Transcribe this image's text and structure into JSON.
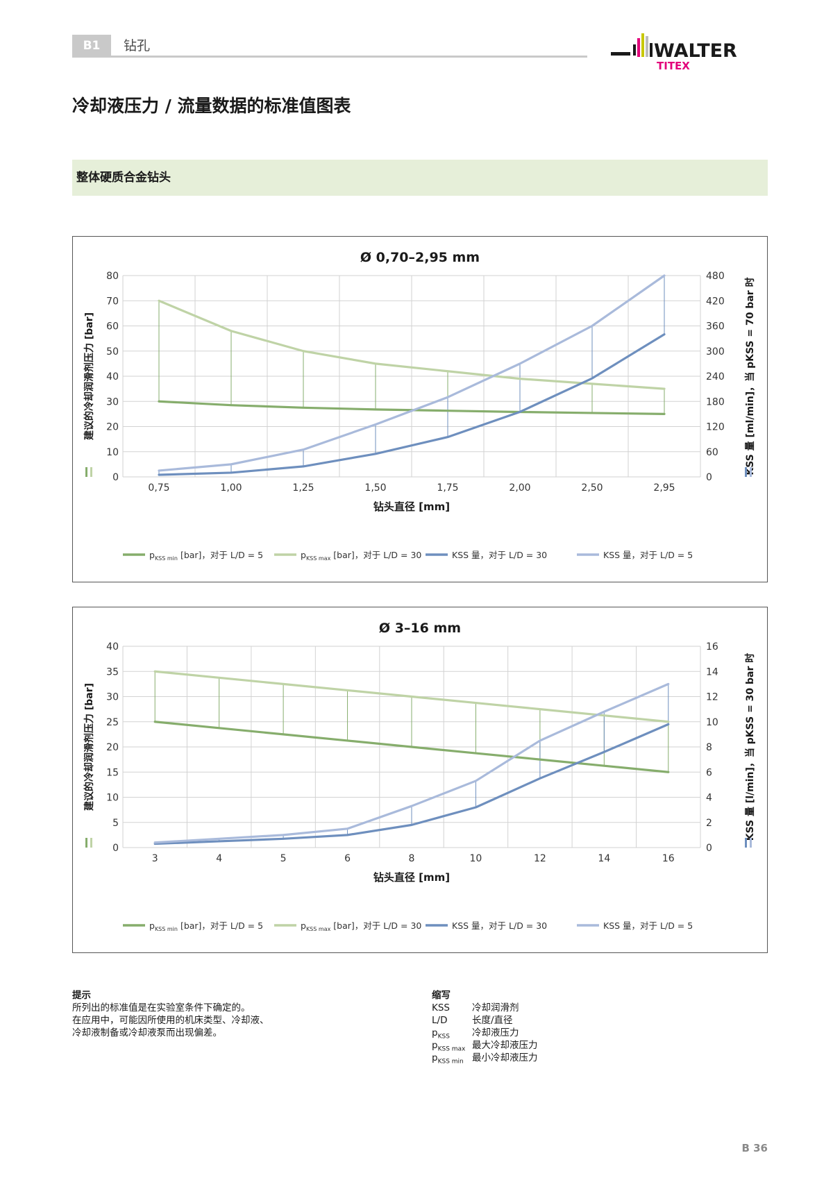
{
  "header": {
    "section_code": "B1",
    "section_title": "钻孔",
    "logo_main": "WALTER",
    "logo_sub": "TITEX"
  },
  "page_title": "冷却液压力 / 流量数据的标准值图表",
  "band_title": "整体硬质合金钻头",
  "colors": {
    "pmin": "#86ad6c",
    "pmax": "#bfd3a6",
    "kss30": "#6e8fbe",
    "kss5": "#a9badb",
    "band": "#e6efd9",
    "badge": "#c9c9c9"
  },
  "chart_data": [
    {
      "type": "line",
      "title": "Ø 0,70–2,95 mm",
      "xlabel": "钻头直径 [mm]",
      "ylabel": "建议的冷却润滑剂压力 [bar]",
      "ylabel_right": "KSS 量 [ml/min]，当 pKSS = 70 bar 时",
      "categories": [
        "0,75",
        "1,00",
        "1,25",
        "1,50",
        "1,75",
        "2,00",
        "2,50",
        "2,95"
      ],
      "ylim": [
        0,
        80
      ],
      "yticks": [
        0,
        10,
        20,
        30,
        40,
        50,
        60,
        70,
        80
      ],
      "y2lim": [
        0,
        480
      ],
      "y2ticks": [
        0,
        60,
        120,
        180,
        240,
        300,
        360,
        420,
        480
      ],
      "grid": true,
      "legend_position": "bottom",
      "series": [
        {
          "name": "pKSSmin [bar]，对于 L/D = 5",
          "axis": "left",
          "values": [
            30,
            28.5,
            27.5,
            26.8,
            26.3,
            25.8,
            25.4,
            25
          ]
        },
        {
          "name": "pKSSmax [bar]，对于 L/D = 30",
          "axis": "left",
          "values": [
            70,
            58,
            50,
            45,
            42,
            39,
            37,
            35
          ]
        },
        {
          "name": "KSS 量，对于 L/D = 30",
          "axis": "right",
          "values": [
            5,
            10,
            25,
            55,
            95,
            155,
            235,
            340
          ]
        },
        {
          "name": "KSS 量，对于 L/D = 5",
          "axis": "right",
          "values": [
            15,
            30,
            65,
            125,
            190,
            270,
            360,
            480
          ]
        }
      ],
      "legend_labels": [
        {
          "p": "p",
          "sub": "KSS min",
          "rest": " [bar]，对于 L/D = 5"
        },
        {
          "p": "p",
          "sub": "KSS max",
          "rest": " [bar]，对于 L/D = 30"
        },
        {
          "p": "",
          "sub": "",
          "rest": "KSS 量，对于 L/D = 30"
        },
        {
          "p": "",
          "sub": "",
          "rest": "KSS 量，对于 L/D = 5"
        }
      ]
    },
    {
      "type": "line",
      "title": "Ø 3–16 mm",
      "xlabel": "钻头直径 [mm]",
      "ylabel": "建议的冷却润滑剂压力 [bar]",
      "ylabel_right": "KSS 量 [l/min]，当 pKSS = 30 bar 时",
      "categories": [
        "3",
        "4",
        "5",
        "6",
        "8",
        "10",
        "12",
        "14",
        "16"
      ],
      "ylim": [
        0,
        40
      ],
      "yticks": [
        0,
        5,
        10,
        15,
        20,
        25,
        30,
        35,
        40
      ],
      "y2lim": [
        0,
        16
      ],
      "y2ticks": [
        0,
        2,
        4,
        6,
        8,
        10,
        12,
        14,
        16
      ],
      "grid": true,
      "legend_position": "bottom",
      "series": [
        {
          "name": "pKSSmin [bar]，对于 L/D = 5",
          "axis": "left",
          "values": [
            25,
            23.75,
            22.5,
            21.25,
            20,
            18.75,
            17.5,
            16.25,
            15
          ]
        },
        {
          "name": "pKSSmax [bar]，对于 L/D = 30",
          "axis": "left",
          "values": [
            35,
            33.75,
            32.5,
            31.25,
            30,
            28.75,
            27.5,
            26.25,
            25
          ]
        },
        {
          "name": "KSS 量，对于 L/D = 30",
          "axis": "right",
          "values": [
            0.3,
            0.5,
            0.7,
            1.0,
            1.8,
            3.2,
            5.5,
            7.6,
            9.8
          ]
        },
        {
          "name": "KSS 量，对于 L/D = 5",
          "axis": "right",
          "values": [
            0.4,
            0.7,
            1.0,
            1.5,
            3.3,
            5.3,
            8.5,
            10.8,
            13
          ]
        }
      ],
      "legend_labels": [
        {
          "p": "p",
          "sub": "KSS min",
          "rest": " [bar]，对于 L/D = 5"
        },
        {
          "p": "p",
          "sub": "KSS max",
          "rest": " [bar]，对于 L/D = 30"
        },
        {
          "p": "",
          "sub": "",
          "rest": "KSS 量，对于 L/D = 30"
        },
        {
          "p": "",
          "sub": "",
          "rest": "KSS 量，对于 L/D = 5"
        }
      ]
    }
  ],
  "notes": {
    "title": "提示",
    "lines": [
      "所列出的标准值是在实验室条件下确定的。",
      "在应用中，可能因所使用的机床类型、冷却液、",
      "冷却液制备或冷却液泵而出现偏差。"
    ]
  },
  "abbreviations": {
    "title": "缩写",
    "items": [
      {
        "abbr": "KSS",
        "sub": "",
        "desc": "冷却润滑剂"
      },
      {
        "abbr": "L/D",
        "sub": "",
        "desc": "长度/直径"
      },
      {
        "abbr": "p",
        "sub": "KSS",
        "desc": "冷却液压力"
      },
      {
        "abbr": "p",
        "sub": "KSS max",
        "desc": "最大冷却液压力"
      },
      {
        "abbr": "p",
        "sub": "KSS min",
        "desc": "最小冷却液压力"
      }
    ]
  },
  "page_number": "B 36"
}
